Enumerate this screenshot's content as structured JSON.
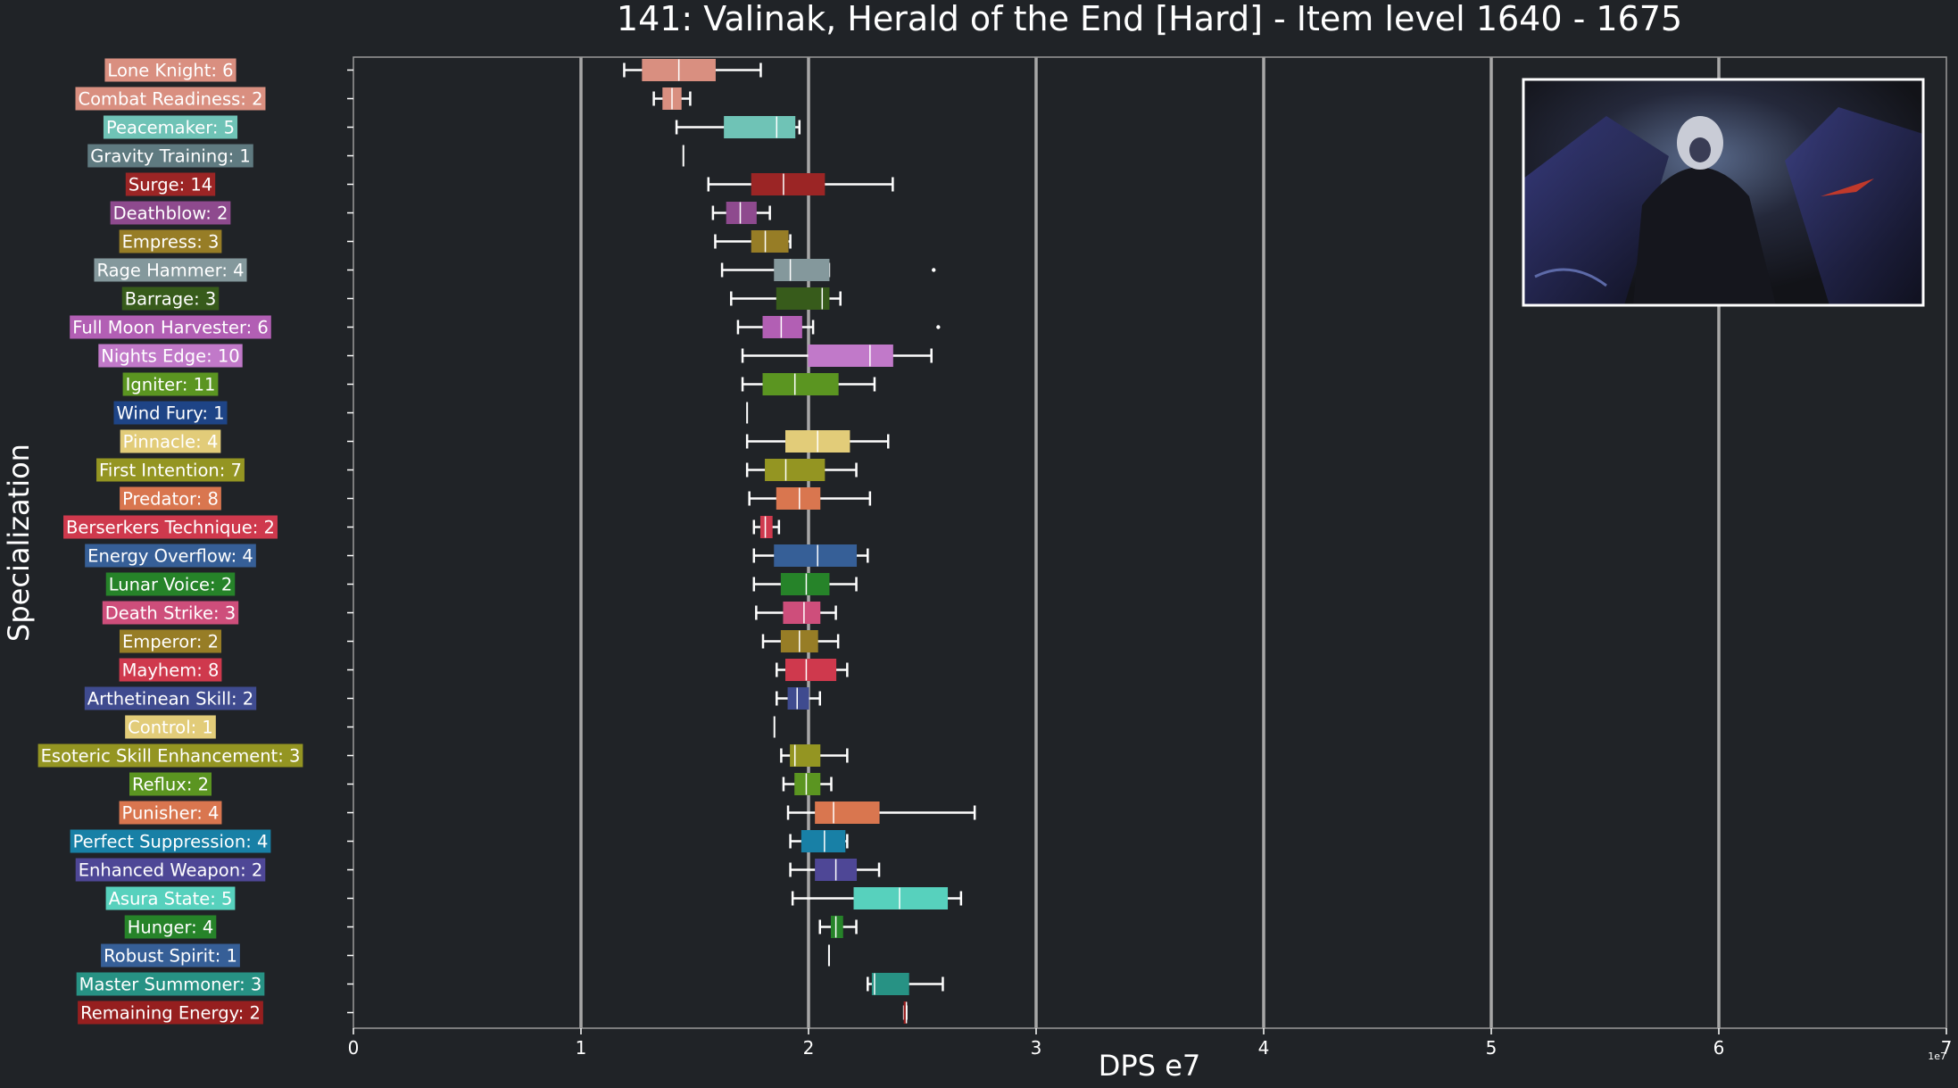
{
  "chart_data": {
    "type": "box",
    "title": "141: Valinak, Herald of the End [Hard] - Item level 1640 - 1675",
    "xlabel": "DPS e7",
    "ylabel": "Specialization",
    "offset_label": "1e7",
    "xlim": [
      0,
      7
    ],
    "xticks": [
      0,
      1,
      2,
      3,
      4,
      5,
      6,
      7
    ],
    "xtick_labels": [
      "0",
      "1",
      "2",
      "3",
      "4",
      "5",
      "6",
      "7"
    ],
    "grid": "vertical",
    "background": "#202327",
    "grid_color": "#a7a7a7",
    "median_line": 2.0,
    "inset_image": "boss-portrait",
    "series": [
      {
        "label": "Lone Knight: 6",
        "color": "#d98f80",
        "wlo": 1.19,
        "q1": 1.27,
        "med": 1.43,
        "q3": 1.59,
        "whi": 1.79,
        "outliers": []
      },
      {
        "label": "Combat Readiness: 2",
        "color": "#d98f80",
        "wlo": 1.32,
        "q1": 1.36,
        "med": 1.4,
        "q3": 1.44,
        "whi": 1.48,
        "outliers": []
      },
      {
        "label": "Peacemaker: 5",
        "color": "#6fc3b6",
        "wlo": 1.42,
        "q1": 1.63,
        "med": 1.86,
        "q3": 1.94,
        "whi": 1.96,
        "outliers": []
      },
      {
        "label": "Gravity Training: 1",
        "color": "#5f7a80",
        "wlo": 1.45,
        "q1": 1.45,
        "med": 1.45,
        "q3": 1.45,
        "whi": 1.45,
        "outliers": []
      },
      {
        "label": "Surge: 14",
        "color": "#9b2525",
        "wlo": 1.56,
        "q1": 1.75,
        "med": 1.89,
        "q3": 2.07,
        "whi": 2.37,
        "outliers": []
      },
      {
        "label": "Deathblow: 2",
        "color": "#8e4a8e",
        "wlo": 1.58,
        "q1": 1.64,
        "med": 1.7,
        "q3": 1.77,
        "whi": 1.83,
        "outliers": []
      },
      {
        "label": "Empress: 3",
        "color": "#977d26",
        "wlo": 1.59,
        "q1": 1.75,
        "med": 1.81,
        "q3": 1.91,
        "whi": 1.92,
        "outliers": []
      },
      {
        "label": "Rage Hammer: 4",
        "color": "#84989c",
        "wlo": 1.62,
        "q1": 1.85,
        "med": 1.92,
        "q3": 2.09,
        "whi": 2.09,
        "outliers": [
          2.55
        ]
      },
      {
        "label": "Barrage: 3",
        "color": "#375b1b",
        "wlo": 1.66,
        "q1": 1.86,
        "med": 2.06,
        "q3": 2.09,
        "whi": 2.14,
        "outliers": []
      },
      {
        "label": "Full Moon Harvester: 6",
        "color": "#b25fb4",
        "wlo": 1.69,
        "q1": 1.8,
        "med": 1.88,
        "q3": 1.97,
        "whi": 2.02,
        "outliers": [
          2.57
        ]
      },
      {
        "label": "Nights Edge: 10",
        "color": "#c179c9",
        "wlo": 1.71,
        "q1": 2.0,
        "med": 2.27,
        "q3": 2.37,
        "whi": 2.54,
        "outliers": []
      },
      {
        "label": "Igniter: 11",
        "color": "#5b9521",
        "wlo": 1.71,
        "q1": 1.8,
        "med": 1.94,
        "q3": 2.13,
        "whi": 2.29,
        "outliers": []
      },
      {
        "label": "Wind Fury: 1",
        "color": "#1e4486",
        "wlo": 1.73,
        "q1": 1.73,
        "med": 1.73,
        "q3": 1.73,
        "whi": 1.73,
        "outliers": []
      },
      {
        "label": "Pinnacle: 4",
        "color": "#e2cc79",
        "wlo": 1.73,
        "q1": 1.9,
        "med": 2.04,
        "q3": 2.18,
        "whi": 2.35,
        "outliers": []
      },
      {
        "label": "First Intention: 7",
        "color": "#949522",
        "wlo": 1.73,
        "q1": 1.81,
        "med": 1.9,
        "q3": 2.07,
        "whi": 2.21,
        "outliers": []
      },
      {
        "label": "Predator: 8",
        "color": "#d9764f",
        "wlo": 1.74,
        "q1": 1.86,
        "med": 1.96,
        "q3": 2.05,
        "whi": 2.27,
        "outliers": []
      },
      {
        "label": "Berserkers Technique: 2",
        "color": "#cf394d",
        "wlo": 1.76,
        "q1": 1.79,
        "med": 1.81,
        "q3": 1.84,
        "whi": 1.87,
        "outliers": []
      },
      {
        "label": "Energy Overflow: 4",
        "color": "#365f97",
        "wlo": 1.76,
        "q1": 1.85,
        "med": 2.04,
        "q3": 2.21,
        "whi": 2.26,
        "outliers": []
      },
      {
        "label": "Lunar Voice: 2",
        "color": "#268329",
        "wlo": 1.76,
        "q1": 1.88,
        "med": 1.99,
        "q3": 2.09,
        "whi": 2.21,
        "outliers": []
      },
      {
        "label": "Death Strike: 3",
        "color": "#ce4e7b",
        "wlo": 1.77,
        "q1": 1.89,
        "med": 1.98,
        "q3": 2.05,
        "whi": 2.12,
        "outliers": []
      },
      {
        "label": "Emperor: 2",
        "color": "#977d26",
        "wlo": 1.8,
        "q1": 1.88,
        "med": 1.96,
        "q3": 2.04,
        "whi": 2.13,
        "outliers": []
      },
      {
        "label": "Mayhem: 8",
        "color": "#cf394d",
        "wlo": 1.86,
        "q1": 1.9,
        "med": 1.99,
        "q3": 2.12,
        "whi": 2.17,
        "outliers": []
      },
      {
        "label": "Arthetinean Skill: 2",
        "color": "#3f4b8f",
        "wlo": 1.86,
        "q1": 1.91,
        "med": 1.95,
        "q3": 2.0,
        "whi": 2.05,
        "outliers": []
      },
      {
        "label": "Control: 1",
        "color": "#e2cc79",
        "wlo": 1.85,
        "q1": 1.85,
        "med": 1.85,
        "q3": 1.85,
        "whi": 1.85,
        "outliers": []
      },
      {
        "label": "Esoteric Skill Enhancement: 3",
        "color": "#949522",
        "wlo": 1.88,
        "q1": 1.92,
        "med": 1.94,
        "q3": 2.05,
        "whi": 2.17,
        "outliers": []
      },
      {
        "label": "Reflux: 2",
        "color": "#5b9521",
        "wlo": 1.89,
        "q1": 1.94,
        "med": 1.99,
        "q3": 2.05,
        "whi": 2.1,
        "outliers": []
      },
      {
        "label": "Punisher: 4",
        "color": "#d9764f",
        "wlo": 1.91,
        "q1": 2.03,
        "med": 2.11,
        "q3": 2.31,
        "whi": 2.73,
        "outliers": []
      },
      {
        "label": "Perfect Suppression: 4",
        "color": "#1880a6",
        "wlo": 1.92,
        "q1": 1.97,
        "med": 2.07,
        "q3": 2.16,
        "whi": 2.17,
        "outliers": []
      },
      {
        "label": "Enhanced Weapon: 2",
        "color": "#4e4796",
        "wlo": 1.92,
        "q1": 2.03,
        "med": 2.12,
        "q3": 2.21,
        "whi": 2.31,
        "outliers": []
      },
      {
        "label": "Asura State: 5",
        "color": "#57d1bd",
        "wlo": 1.93,
        "q1": 2.2,
        "med": 2.4,
        "q3": 2.61,
        "whi": 2.67,
        "outliers": []
      },
      {
        "label": "Hunger: 4",
        "color": "#268329",
        "wlo": 2.05,
        "q1": 2.1,
        "med": 2.12,
        "q3": 2.15,
        "whi": 2.21,
        "outliers": []
      },
      {
        "label": "Robust Spirit: 1",
        "color": "#365f97",
        "wlo": 2.09,
        "q1": 2.09,
        "med": 2.09,
        "q3": 2.09,
        "whi": 2.09,
        "outliers": []
      },
      {
        "label": "Master Summoner: 3",
        "color": "#279284",
        "wlo": 2.26,
        "q1": 2.28,
        "med": 2.29,
        "q3": 2.44,
        "whi": 2.59,
        "outliers": []
      },
      {
        "label": "Remaining Energy: 2",
        "color": "#961f1f",
        "wlo": 2.42,
        "q1": 2.42,
        "med": 2.43,
        "q3": 2.43,
        "whi": 2.43,
        "outliers": []
      }
    ]
  }
}
